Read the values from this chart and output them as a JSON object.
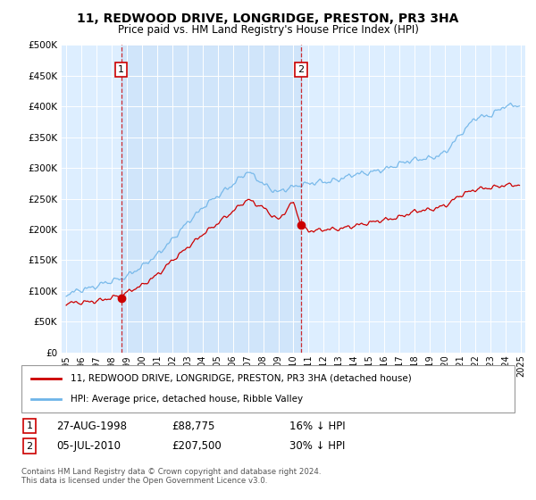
{
  "title": "11, REDWOOD DRIVE, LONGRIDGE, PRESTON, PR3 3HA",
  "subtitle": "Price paid vs. HM Land Registry's House Price Index (HPI)",
  "legend_line1": "11, REDWOOD DRIVE, LONGRIDGE, PRESTON, PR3 3HA (detached house)",
  "legend_line2": "HPI: Average price, detached house, Ribble Valley",
  "annotation1_date": "27-AUG-1998",
  "annotation1_price": "£88,775",
  "annotation1_pct": "16% ↓ HPI",
  "annotation2_date": "05-JUL-2010",
  "annotation2_price": "£207,500",
  "annotation2_pct": "30% ↓ HPI",
  "footer": "Contains HM Land Registry data © Crown copyright and database right 2024.\nThis data is licensed under the Open Government Licence v3.0.",
  "hpi_color": "#6eb4e8",
  "price_color": "#cc0000",
  "bg_color": "#ddeeff",
  "yticks": [
    0,
    50000,
    100000,
    150000,
    200000,
    250000,
    300000,
    350000,
    400000,
    450000,
    500000
  ],
  "sale1_year": 1998.625,
  "sale1_price": 88775,
  "sale2_year": 2010.5,
  "sale2_price": 207500,
  "hpi_keypoints_x": [
    1995.0,
    1996.0,
    1997.0,
    1998.0,
    1999.0,
    2000.0,
    2001.0,
    2002.0,
    2003.0,
    2004.0,
    2005.0,
    2006.0,
    2007.0,
    2008.0,
    2009.0,
    2010.0,
    2011.0,
    2012.0,
    2013.0,
    2014.0,
    2015.0,
    2016.0,
    2017.0,
    2018.0,
    2019.0,
    2020.0,
    2021.0,
    2022.0,
    2023.0,
    2024.0
  ],
  "hpi_keypoints_y": [
    95000,
    100000,
    105000,
    115000,
    125000,
    140000,
    160000,
    185000,
    210000,
    235000,
    255000,
    275000,
    295000,
    275000,
    260000,
    270000,
    275000,
    278000,
    282000,
    290000,
    295000,
    300000,
    310000,
    318000,
    322000,
    330000,
    360000,
    385000,
    390000,
    405000
  ],
  "price_keypoints_x": [
    1995.0,
    1996.0,
    1997.0,
    1998.0,
    1999.0,
    2000.0,
    2001.0,
    2002.0,
    2003.0,
    2004.0,
    2005.0,
    2006.0,
    2007.0,
    2008.0,
    2009.0,
    2010.0,
    2010.5,
    2011.0,
    2012.0,
    2013.0,
    2014.0,
    2015.0,
    2016.0,
    2017.0,
    2018.0,
    2019.0,
    2020.0,
    2021.0,
    2022.0,
    2023.0,
    2024.0
  ],
  "price_keypoints_y": [
    80000,
    82000,
    84000,
    88000,
    95000,
    108000,
    125000,
    148000,
    170000,
    192000,
    210000,
    230000,
    248000,
    235000,
    215000,
    245000,
    207500,
    198000,
    198000,
    200000,
    205000,
    210000,
    215000,
    220000,
    228000,
    232000,
    238000,
    255000,
    265000,
    268000,
    272000
  ]
}
